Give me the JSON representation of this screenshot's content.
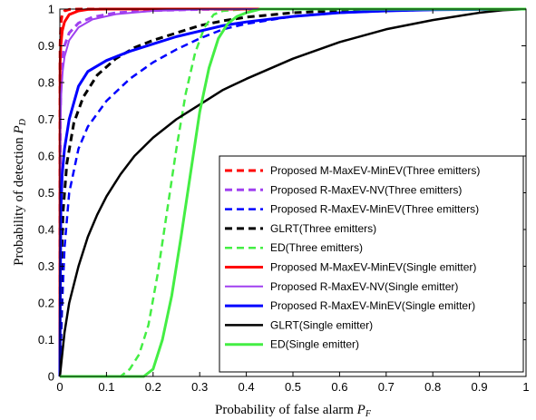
{
  "chart_data": {
    "type": "line",
    "xlabel": "Probability of false alarm",
    "xlabel_sub": "F",
    "ylabel": "Probability of detection",
    "ylabel_sub": "D",
    "xlim": [
      0,
      1
    ],
    "ylim": [
      0,
      1
    ],
    "x_ticks": [
      0,
      0.1,
      0.2,
      0.3,
      0.4,
      0.5,
      0.6,
      0.7,
      0.8,
      0.9,
      1
    ],
    "x_tick_labels": [
      "0",
      "0.1",
      "0.2",
      "0.3",
      "0.4",
      "0.5",
      "0.6",
      "0.7",
      "0.8",
      "0.9",
      "1"
    ],
    "y_ticks": [
      0,
      0.1,
      0.2,
      0.3,
      0.4,
      0.5,
      0.6,
      0.7,
      0.8,
      0.9,
      1
    ],
    "y_tick_labels": [
      "0",
      "0.1",
      "0.2",
      "0.3",
      "0.4",
      "0.5",
      "0.6",
      "0.7",
      "0.8",
      "0.9",
      "1"
    ],
    "grid": false,
    "legend_position": "bottom-right",
    "series": [
      {
        "name": "Proposed M-MaxEV-MinEV(Three emitters)",
        "color": "#ff0000",
        "dash": true,
        "width": 3,
        "x": [
          0,
          0.0005,
          0.002,
          0.005,
          0.01,
          0.02,
          0.04,
          0.1,
          1
        ],
        "y": [
          0,
          0.9,
          0.96,
          0.985,
          0.995,
          0.999,
          1,
          1,
          1
        ]
      },
      {
        "name": "Proposed R-MaxEV-NV(Three emitters)",
        "color": "#a040f0",
        "dash": true,
        "width": 3,
        "x": [
          0,
          0.001,
          0.003,
          0.006,
          0.01,
          0.02,
          0.04,
          0.07,
          0.12,
          0.2,
          0.3,
          0.4,
          1
        ],
        "y": [
          0,
          0.72,
          0.82,
          0.87,
          0.9,
          0.935,
          0.962,
          0.978,
          0.99,
          0.996,
          0.999,
          1,
          1
        ]
      },
      {
        "name": "Proposed R-MaxEV-MinEV(Three emitters)",
        "color": "#0000ff",
        "dash": true,
        "width": 2.5,
        "x": [
          0,
          0.005,
          0.01,
          0.02,
          0.04,
          0.06,
          0.1,
          0.15,
          0.2,
          0.25,
          0.3,
          0.35,
          0.4,
          0.5,
          0.6,
          0.7,
          0.8,
          0.9,
          1
        ],
        "y": [
          0,
          0.2,
          0.35,
          0.5,
          0.62,
          0.68,
          0.75,
          0.81,
          0.855,
          0.89,
          0.92,
          0.945,
          0.96,
          0.98,
          0.99,
          0.995,
          0.998,
          0.999,
          1
        ]
      },
      {
        "name": "GLRT(Three emitters)",
        "color": "#000000",
        "dash": true,
        "width": 3,
        "x": [
          0,
          0.003,
          0.007,
          0.015,
          0.03,
          0.05,
          0.08,
          0.12,
          0.16,
          0.2,
          0.25,
          0.3,
          0.35,
          0.4,
          0.5,
          0.6,
          0.8,
          1
        ],
        "y": [
          0,
          0.3,
          0.45,
          0.58,
          0.69,
          0.76,
          0.82,
          0.865,
          0.895,
          0.915,
          0.935,
          0.955,
          0.968,
          0.978,
          0.99,
          0.996,
          0.999,
          1
        ]
      },
      {
        "name": "ED(Three emitters)",
        "color": "#44ee44",
        "dash": true,
        "width": 2.5,
        "x": [
          0,
          0.13,
          0.15,
          0.17,
          0.19,
          0.21,
          0.23,
          0.25,
          0.27,
          0.29,
          0.31,
          0.33,
          0.35,
          0.4,
          1
        ],
        "y": [
          0,
          0,
          0.02,
          0.06,
          0.14,
          0.28,
          0.45,
          0.62,
          0.77,
          0.88,
          0.95,
          0.985,
          0.995,
          1,
          1
        ]
      },
      {
        "name": "Proposed M-MaxEV-MinEV(Single emitter)",
        "color": "#ff0000",
        "dash": false,
        "width": 3,
        "x": [
          0,
          0.0005,
          0.002,
          0.005,
          0.01,
          0.02,
          0.04,
          0.06,
          0.1,
          1
        ],
        "y": [
          0,
          0.85,
          0.9,
          0.94,
          0.965,
          0.985,
          0.995,
          0.999,
          1,
          1
        ]
      },
      {
        "name": "Proposed R-MaxEV-NV(Single emitter)",
        "color": "#a040f0",
        "dash": false,
        "width": 2,
        "x": [
          0,
          0.001,
          0.003,
          0.006,
          0.01,
          0.02,
          0.04,
          0.07,
          0.12,
          0.2,
          0.3,
          0.4,
          1
        ],
        "y": [
          0,
          0.67,
          0.77,
          0.83,
          0.87,
          0.915,
          0.95,
          0.972,
          0.986,
          0.995,
          0.999,
          1,
          1
        ]
      },
      {
        "name": "Proposed R-MaxEV-MinEV(Single emitter)",
        "color": "#0000ff",
        "dash": false,
        "width": 3,
        "x": [
          0,
          0.002,
          0.005,
          0.01,
          0.02,
          0.04,
          0.06,
          0.1,
          0.15,
          0.2,
          0.25,
          0.3,
          0.35,
          0.4,
          0.5,
          0.6,
          0.7,
          0.8,
          0.9,
          1
        ],
        "y": [
          0,
          0.45,
          0.55,
          0.62,
          0.7,
          0.79,
          0.83,
          0.86,
          0.885,
          0.905,
          0.925,
          0.94,
          0.955,
          0.965,
          0.98,
          0.99,
          0.995,
          0.998,
          0.999,
          1
        ]
      },
      {
        "name": "GLRT(Single emitter)",
        "color": "#000000",
        "dash": false,
        "width": 2.5,
        "x": [
          0,
          0.005,
          0.01,
          0.02,
          0.04,
          0.06,
          0.08,
          0.1,
          0.13,
          0.16,
          0.2,
          0.25,
          0.3,
          0.35,
          0.4,
          0.5,
          0.6,
          0.7,
          0.8,
          0.9,
          0.95,
          1
        ],
        "y": [
          0,
          0.06,
          0.12,
          0.2,
          0.3,
          0.38,
          0.44,
          0.49,
          0.55,
          0.6,
          0.65,
          0.7,
          0.74,
          0.78,
          0.81,
          0.865,
          0.91,
          0.945,
          0.97,
          0.99,
          0.997,
          1
        ]
      },
      {
        "name": "ED(Single emitter)",
        "color": "#44ee44",
        "dash": false,
        "width": 3,
        "x": [
          0,
          0.18,
          0.2,
          0.22,
          0.24,
          0.26,
          0.28,
          0.3,
          0.32,
          0.34,
          0.36,
          0.38,
          0.4,
          0.43,
          0.5,
          1
        ],
        "y": [
          0,
          0,
          0.02,
          0.1,
          0.22,
          0.38,
          0.55,
          0.72,
          0.84,
          0.92,
          0.96,
          0.98,
          0.99,
          1,
          1,
          1
        ]
      }
    ]
  }
}
